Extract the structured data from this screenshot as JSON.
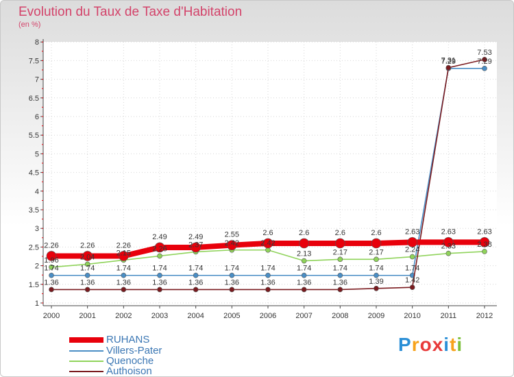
{
  "header": {
    "title": "Evolution du Taux de Taxe d'Habitation",
    "unit": "(en %)"
  },
  "logo": {
    "letters": [
      "P",
      "r",
      "o",
      "x",
      "i",
      "t",
      "i"
    ],
    "colors": [
      "#2b8fd6",
      "#f7a21b",
      "#e83a3a",
      "#e83a3a",
      "#2b8fd6",
      "#f7a21b",
      "#7cbf3a"
    ]
  },
  "chart_data": {
    "type": "line",
    "title": "Evolution du Taux de Taxe d'Habitation",
    "ylabel": "(en %)",
    "x": [
      2000,
      2001,
      2002,
      2003,
      2004,
      2005,
      2006,
      2007,
      2008,
      2009,
      2010,
      2011,
      2012
    ],
    "ylim": [
      1,
      8
    ],
    "yticks": [
      1,
      1.5,
      2,
      2.5,
      3,
      3.5,
      4,
      4.5,
      5,
      5.5,
      6,
      6.5,
      7,
      7.5,
      8
    ],
    "series": [
      {
        "name": "RUHANS",
        "color": "#e8000b",
        "values": [
          2.26,
          2.26,
          2.26,
          2.49,
          2.49,
          2.55,
          2.6,
          2.6,
          2.6,
          2.6,
          2.63,
          2.63,
          2.63
        ],
        "labels": [
          "2.26",
          "2.26",
          "2.26",
          "2.49",
          "2.49",
          "2.55",
          "2.6",
          "2.6",
          "2.6",
          "2.6",
          "2.63",
          "2.63",
          "2.63"
        ]
      },
      {
        "name": "Villers-Pater",
        "color": "#4a8ec5",
        "values": [
          1.74,
          1.74,
          1.74,
          1.74,
          1.74,
          1.74,
          1.74,
          1.74,
          1.74,
          1.74,
          1.74,
          7.29,
          7.29
        ],
        "labels": [
          "1.74",
          "1.74",
          "1.74",
          "1.74",
          "1.74",
          "1.74",
          "1.74",
          "1.74",
          "1.74",
          "1.74",
          "1.74",
          "7.29",
          "7.29"
        ]
      },
      {
        "name": "Quenoche",
        "color": "#8fd35a",
        "values": [
          1.96,
          2.04,
          2.15,
          2.26,
          2.37,
          2.42,
          2.42,
          2.13,
          2.17,
          2.17,
          2.24,
          2.33,
          2.38
        ],
        "labels": [
          "1.96",
          "2.04",
          "2.15",
          "2.26",
          "2.37",
          "2.42",
          "2.42",
          "2.13",
          "2.17",
          "2.17",
          "2.24",
          "2.33",
          "2.38"
        ]
      },
      {
        "name": "Authoison",
        "color": "#7a1a1e",
        "values": [
          1.36,
          1.36,
          1.36,
          1.36,
          1.36,
          1.36,
          1.36,
          1.36,
          1.36,
          1.39,
          1.42,
          7.31,
          7.53
        ],
        "labels": [
          "1.36",
          "1.36",
          "1.36",
          "1.36",
          "1.36",
          "1.36",
          "1.36",
          "1.36",
          "1.36",
          "1.39",
          "1.42",
          "7.31",
          "7.53"
        ]
      }
    ]
  }
}
